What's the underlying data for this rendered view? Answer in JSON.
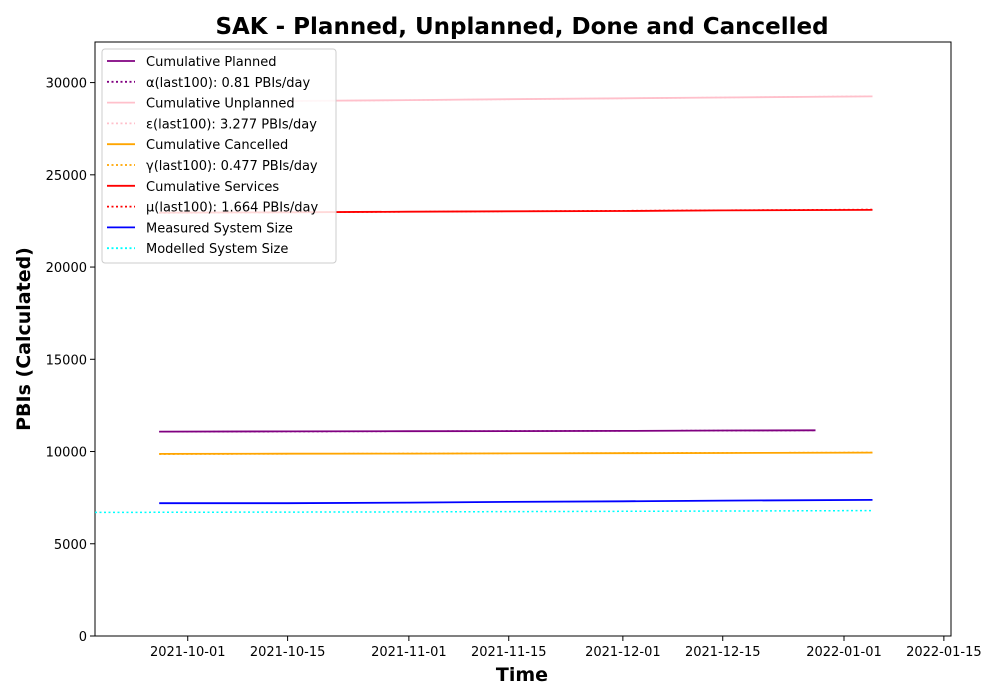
{
  "chart_data": {
    "type": "line",
    "title": "SAK - Planned, Unplanned, Done  and Cancelled",
    "xlabel": "Time",
    "ylabel": "PBIs (Calculated)",
    "xlim": [
      "2021-09-18",
      "2022-01-16"
    ],
    "ylim": [
      0,
      32200
    ],
    "x_ticks": [
      "2021-10-01",
      "2021-10-15",
      "2021-11-01",
      "2021-11-15",
      "2021-12-01",
      "2021-12-15",
      "2022-01-01",
      "2022-01-15"
    ],
    "y_ticks": [
      0,
      5000,
      10000,
      15000,
      20000,
      25000,
      30000
    ],
    "grid": false,
    "legend_position": "top-left",
    "series": [
      {
        "name": "Cumulative Planned",
        "color": "#800080",
        "style": "solid",
        "points": [
          [
            "2021-09-27",
            11080
          ],
          [
            "2021-10-15",
            11090
          ],
          [
            "2021-11-01",
            11100
          ],
          [
            "2021-11-15",
            11110
          ],
          [
            "2021-12-01",
            11120
          ],
          [
            "2021-12-15",
            11140
          ],
          [
            "2021-12-28",
            11150
          ]
        ]
      },
      {
        "name": "α(last100): 0.81 PBIs/day",
        "color": "#800080",
        "style": "dotted",
        "points": [
          [
            "2021-09-27",
            11070
          ],
          [
            "2021-12-28",
            11145
          ]
        ]
      },
      {
        "name": "Cumulative Unplanned",
        "color": "#ffc0cb",
        "style": "solid",
        "points": [
          [
            "2021-10-15",
            29000
          ],
          [
            "2021-11-01",
            29050
          ],
          [
            "2021-11-15",
            29100
          ],
          [
            "2021-12-01",
            29150
          ],
          [
            "2021-12-15",
            29190
          ],
          [
            "2022-01-05",
            29250
          ]
        ]
      },
      {
        "name": "ε(last100): 3.277 PBIs/day",
        "color": "#ffc0cb",
        "style": "dotted",
        "points": [
          [
            "2021-10-15",
            28990
          ],
          [
            "2022-01-05",
            29260
          ]
        ]
      },
      {
        "name": "Cumulative Cancelled",
        "color": "#ffa500",
        "style": "solid",
        "points": [
          [
            "2021-09-27",
            9870
          ],
          [
            "2021-10-15",
            9880
          ],
          [
            "2021-11-01",
            9890
          ],
          [
            "2021-11-15",
            9900
          ],
          [
            "2021-12-01",
            9910
          ],
          [
            "2021-12-15",
            9920
          ],
          [
            "2022-01-05",
            9940
          ]
        ]
      },
      {
        "name": "γ(last100): 0.477 PBIs/day",
        "color": "#ffa500",
        "style": "dotted",
        "points": [
          [
            "2021-09-27",
            9860
          ],
          [
            "2022-01-05",
            9945
          ]
        ]
      },
      {
        "name": "Cumulative Services",
        "color": "#ff0000",
        "style": "solid",
        "points": [
          [
            "2021-09-27",
            22950
          ],
          [
            "2021-10-15",
            22970
          ],
          [
            "2021-11-01",
            23000
          ],
          [
            "2021-11-15",
            23020
          ],
          [
            "2021-12-01",
            23040
          ],
          [
            "2021-12-15",
            23070
          ],
          [
            "2022-01-05",
            23100
          ]
        ]
      },
      {
        "name": "μ(last100): 1.664 PBIs/day",
        "color": "#ff0000",
        "style": "dotted",
        "points": [
          [
            "2021-09-27",
            22930
          ],
          [
            "2022-01-05",
            23120
          ]
        ]
      },
      {
        "name": "Measured System Size",
        "color": "#0000ff",
        "style": "solid",
        "points": [
          [
            "2021-09-27",
            7200
          ],
          [
            "2021-10-15",
            7200
          ],
          [
            "2021-11-01",
            7230
          ],
          [
            "2021-11-15",
            7270
          ],
          [
            "2021-12-01",
            7300
          ],
          [
            "2021-12-15",
            7340
          ],
          [
            "2022-01-05",
            7380
          ]
        ]
      },
      {
        "name": "Modelled System Size",
        "color": "#00ffff",
        "style": "dotted",
        "points": [
          [
            "2021-09-18",
            6700
          ],
          [
            "2021-11-01",
            6730
          ],
          [
            "2021-12-01",
            6760
          ],
          [
            "2022-01-05",
            6800
          ]
        ]
      }
    ]
  }
}
